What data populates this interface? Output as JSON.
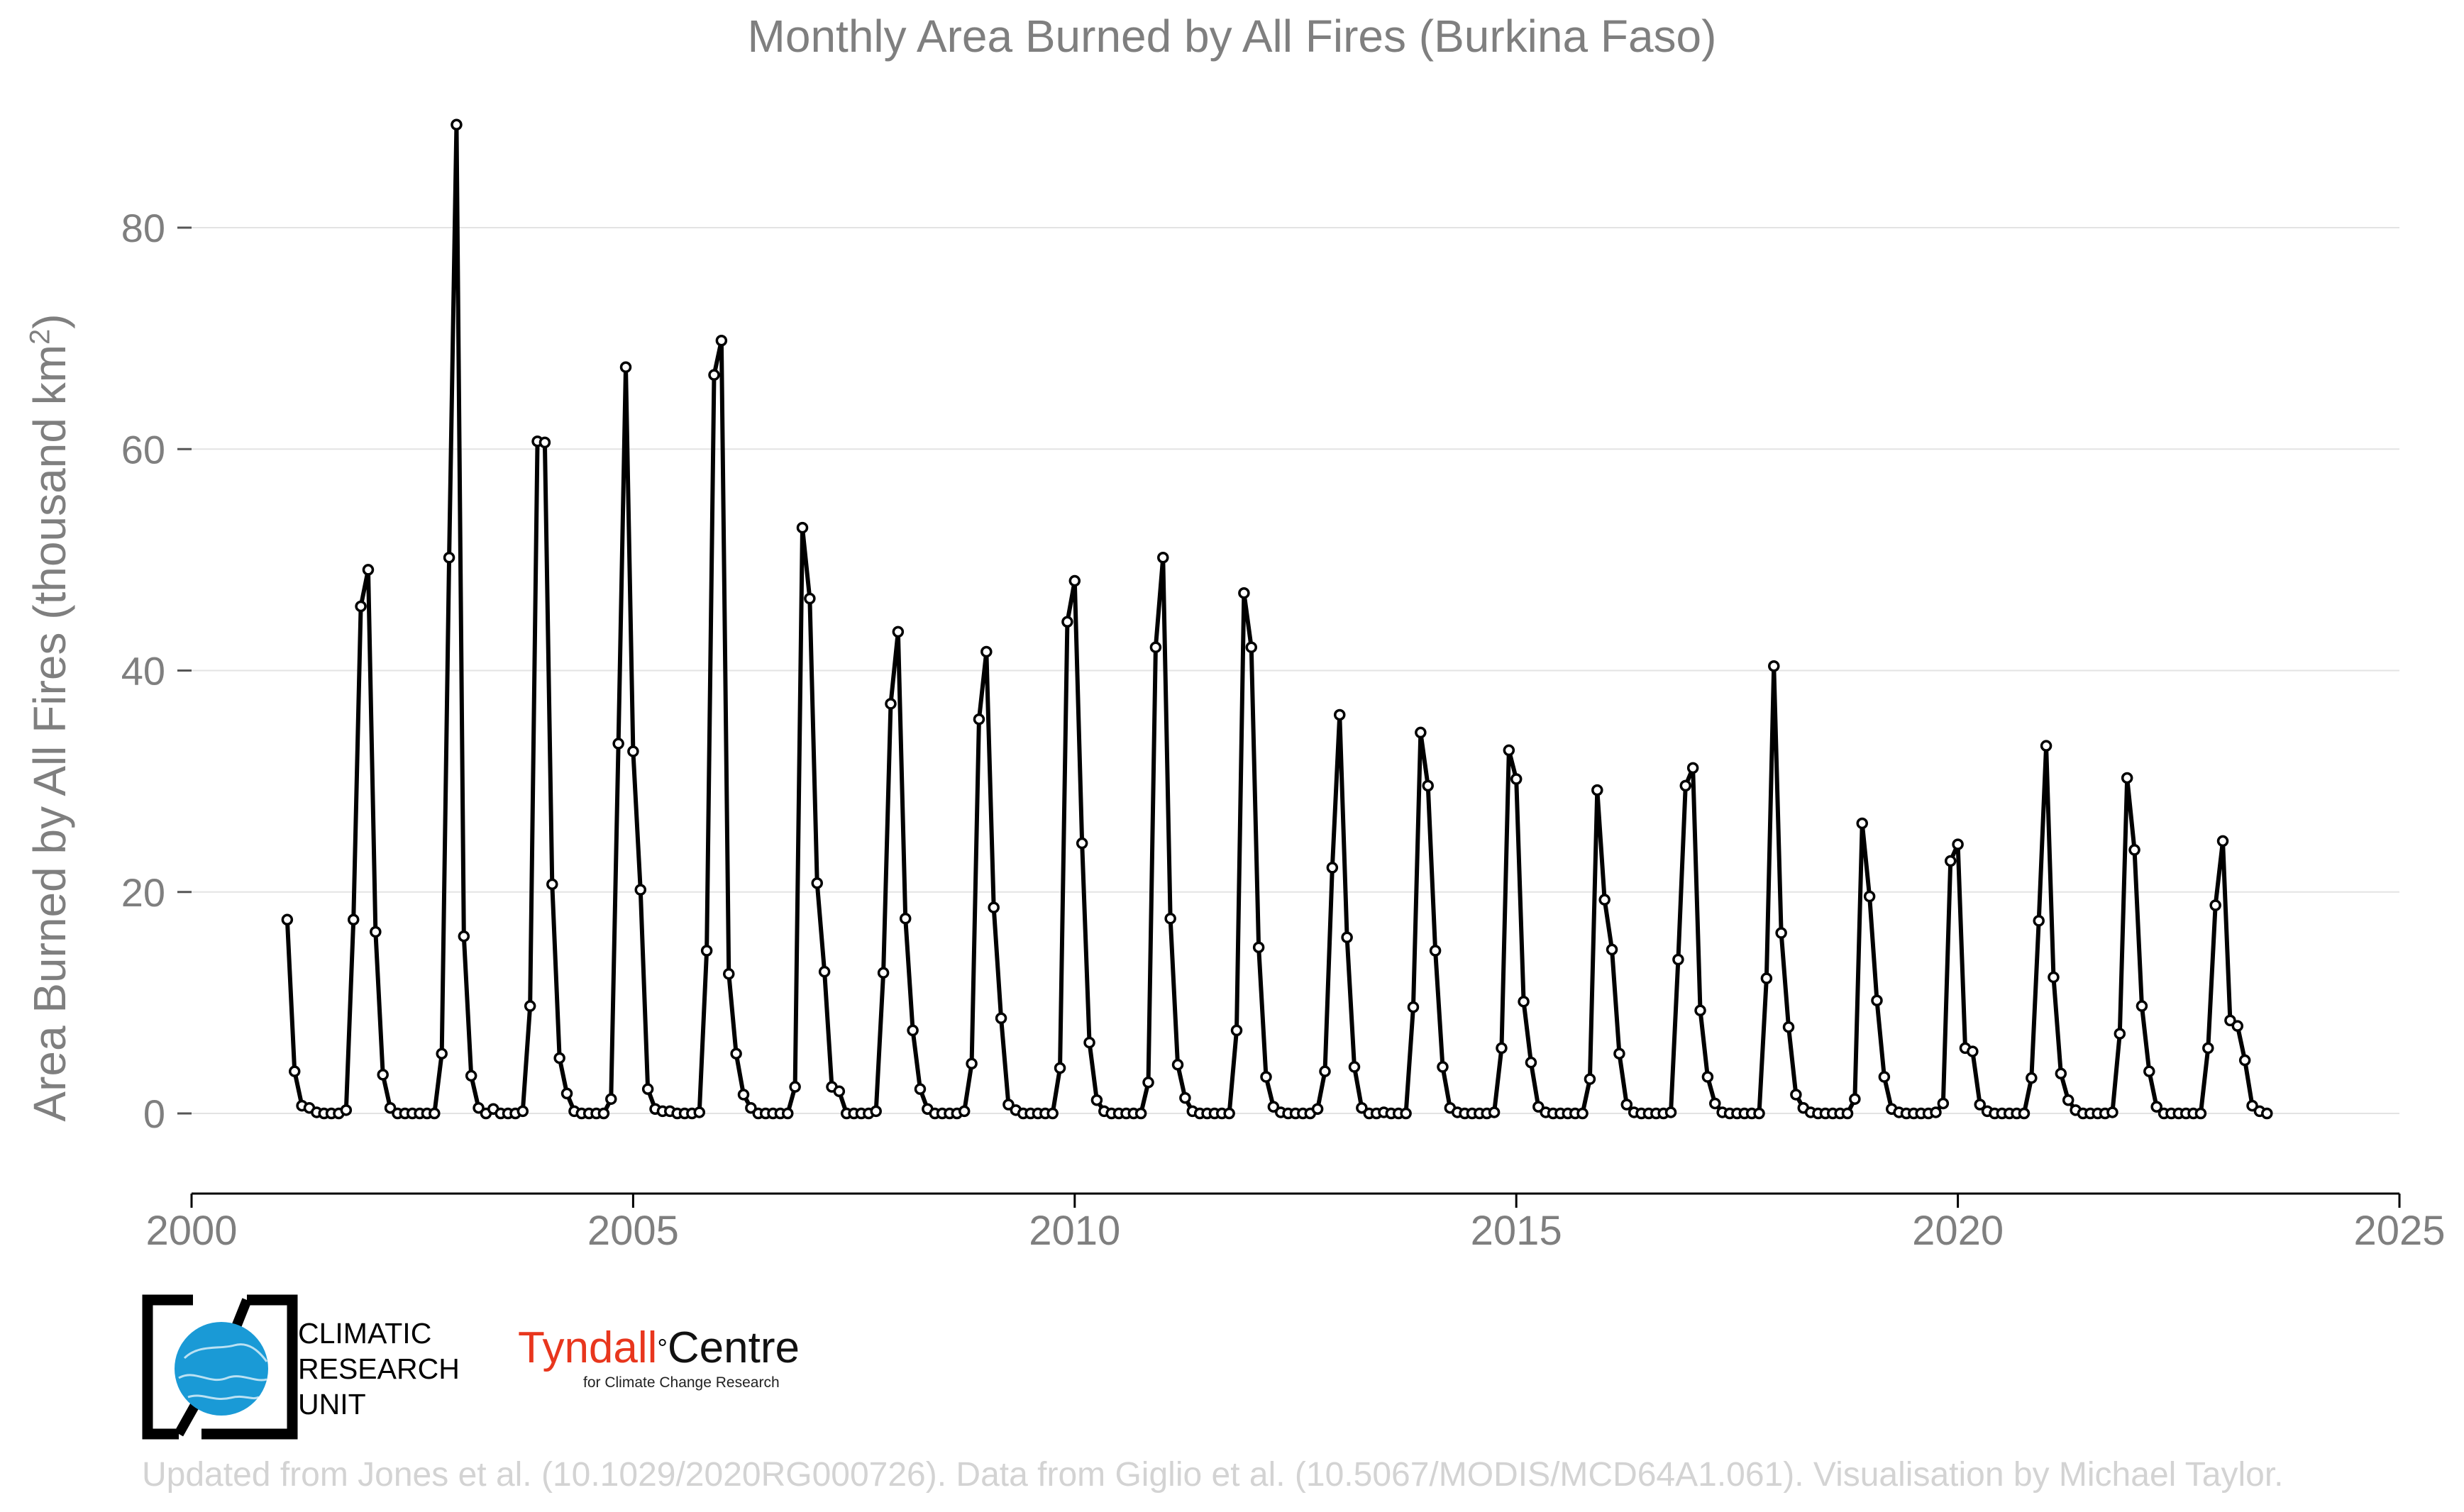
{
  "chart_data": {
    "type": "line",
    "title": "Monthly Area Burned by All Fires (Burkina Faso)",
    "xlabel": "",
    "ylabel": "Area Burned by All Fires (thousand km²)",
    "x_start": "2001-02",
    "x_step": "1 month",
    "xlim": [
      2000,
      2025
    ],
    "ylim": [
      -7,
      90
    ],
    "xticks": [
      "2000",
      "2005",
      "2010",
      "2015",
      "2020",
      "2025"
    ],
    "yticks": [
      "0",
      "20",
      "40",
      "60",
      "80"
    ],
    "grid": "horizontal",
    "series": [
      {
        "color": "#000000",
        "values": [
          17.5,
          3.8,
          0.7,
          0.5,
          0.1,
          0,
          0,
          0,
          0.3,
          17.5,
          45.8,
          49.1,
          16.4,
          3.5,
          0.5,
          0,
          0,
          0,
          0,
          0,
          0,
          5.4,
          50.2,
          89.3,
          16.0,
          3.4,
          0.5,
          0,
          0.4,
          0,
          0,
          0,
          0.2,
          9.7,
          60.7,
          60.6,
          20.7,
          5.0,
          1.8,
          0.2,
          0,
          0,
          0,
          0,
          1.3,
          33.4,
          67.4,
          32.7,
          20.2,
          2.2,
          0.4,
          0.2,
          0.2,
          0,
          0,
          0,
          0.1,
          14.7,
          66.7,
          69.8,
          12.6,
          5.4,
          1.7,
          0.5,
          0,
          0,
          0,
          0,
          0,
          2.4,
          52.9,
          46.5,
          20.8,
          12.8,
          2.4,
          2.0,
          0,
          0,
          0,
          0,
          0.2,
          12.7,
          37.0,
          43.5,
          17.6,
          7.5,
          2.2,
          0.4,
          0,
          0,
          0,
          0,
          0.2,
          4.5,
          35.6,
          41.7,
          18.6,
          8.6,
          0.8,
          0.3,
          0,
          0,
          0,
          0,
          0,
          4.1,
          44.4,
          48.1,
          24.4,
          6.4,
          1.2,
          0.2,
          0,
          0,
          0,
          0,
          0,
          2.8,
          42.1,
          50.2,
          17.6,
          4.4,
          1.4,
          0.2,
          0,
          0,
          0,
          0,
          0,
          7.5,
          47.0,
          42.1,
          15.0,
          3.3,
          0.6,
          0.1,
          0,
          0,
          0,
          0,
          0.4,
          3.8,
          22.2,
          36.0,
          15.9,
          4.2,
          0.5,
          0,
          0,
          0.1,
          0,
          0,
          0,
          9.6,
          34.4,
          29.6,
          14.7,
          4.2,
          0.5,
          0.1,
          0,
          0,
          0,
          0,
          0.1,
          5.9,
          32.8,
          30.2,
          10.1,
          4.6,
          0.6,
          0.1,
          0,
          0,
          0,
          0,
          0,
          3.1,
          29.2,
          19.3,
          14.8,
          5.4,
          0.8,
          0.1,
          0,
          0,
          0,
          0,
          0.1,
          13.9,
          29.6,
          31.2,
          9.3,
          3.3,
          0.9,
          0.1,
          0,
          0,
          0,
          0,
          0,
          12.2,
          40.4,
          16.3,
          7.8,
          1.7,
          0.5,
          0.1,
          0,
          0,
          0,
          0,
          0,
          1.3,
          26.2,
          19.6,
          10.2,
          3.3,
          0.4,
          0.1,
          0,
          0,
          0,
          0,
          0.1,
          0.9,
          22.8,
          24.3,
          5.9,
          5.6,
          0.8,
          0.2,
          0,
          0,
          0,
          0,
          0,
          3.2,
          17.4,
          33.2,
          12.3,
          3.6,
          1.2,
          0.3,
          0,
          0,
          0,
          0,
          0.1,
          7.2,
          30.3,
          23.8,
          9.7,
          3.8,
          0.6,
          0,
          0,
          0,
          0,
          0,
          0,
          5.9,
          18.8,
          24.6,
          8.4,
          7.9,
          4.8,
          0.7,
          0.2,
          0
        ]
      }
    ]
  },
  "logos": {
    "cru_lines": [
      "CLIMATIC",
      "RESEARCH",
      "UNIT"
    ],
    "tyndall_red": "Tyndall",
    "tyndall_degree": "°",
    "tyndall_black": "Centre",
    "tyndall_sub": "for Climate Change Research"
  },
  "credit": "Updated from Jones et al. (10.1029/2020RG000726). Data from Giglio et al. (10.5067/MODIS/MCD64A1.061). Visualisation by Michael Taylor.",
  "colors": {
    "text_gray": "#7f7f7f",
    "grid": "#e3e3e3",
    "credit": "#d3d3d3",
    "cru_blue": "#1a9ad6",
    "tyndall_red": "#e8361d"
  }
}
